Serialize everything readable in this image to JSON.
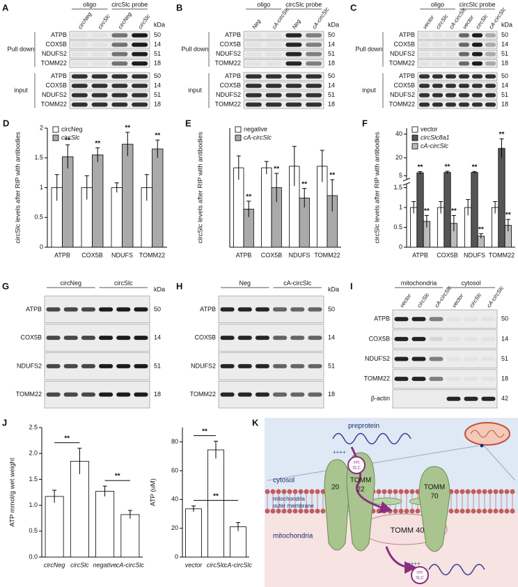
{
  "blots": [
    {
      "letter": "A",
      "kda_label": "kDa",
      "groups": [
        {
          "label": "oligo",
          "lanes": [
            "circNeg",
            "circSlc"
          ]
        },
        {
          "label": "circSlc probe",
          "lanes": [
            "circNeg",
            "circSlc"
          ]
        }
      ],
      "sections": [
        {
          "label": "Pull down",
          "rows": [
            {
              "protein": "ATPB",
              "kda": 50
            },
            {
              "protein": "COX5B",
              "kda": 14
            },
            {
              "protein": "NDUFS2",
              "kda": 51
            },
            {
              "protein": "TOMM22",
              "kda": 18
            }
          ]
        },
        {
          "label": "input",
          "rows": [
            {
              "protein": "ATPB",
              "kda": 50
            },
            {
              "protein": "COX5B",
              "kda": 14
            },
            {
              "protein": "NDUFS2",
              "kda": 51
            },
            {
              "protein": "TOMM22",
              "kda": 18
            }
          ]
        }
      ]
    },
    {
      "letter": "B",
      "kda_label": "kDa",
      "groups": [
        {
          "label": "oligo",
          "lanes": [
            "Neg",
            "cA-circSlc"
          ]
        },
        {
          "label": "circSlc probe",
          "lanes": [
            "Neg",
            "cA-circSlc"
          ]
        }
      ],
      "sections": [
        {
          "label": "Pull down",
          "rows": [
            {
              "protein": "ATPB",
              "kda": 50
            },
            {
              "protein": "COX5B",
              "kda": 14
            },
            {
              "protein": "NDUFS2",
              "kda": 51
            },
            {
              "protein": "TOMM22",
              "kda": 18
            }
          ]
        },
        {
          "label": "input",
          "rows": [
            {
              "protein": "ATPB",
              "kda": 50
            },
            {
              "protein": "COX5B",
              "kda": 14
            },
            {
              "protein": "NDUFS2",
              "kda": 51
            },
            {
              "protein": "TOMM22",
              "kda": 18
            }
          ]
        }
      ]
    },
    {
      "letter": "C",
      "kda_label": "kDa",
      "groups": [
        {
          "label": "oligo",
          "lanes": [
            "vector",
            "circSlc",
            "cA-circSlc"
          ]
        },
        {
          "label": "circSlc probe",
          "lanes": [
            "vector",
            "circSlc",
            "cA-circSlc"
          ]
        }
      ],
      "sections": [
        {
          "label": "Pull down",
          "rows": [
            {
              "protein": "ATPB",
              "kda": 50
            },
            {
              "protein": "COX5B",
              "kda": 14
            },
            {
              "protein": "NDUFS2",
              "kda": 51
            },
            {
              "protein": "TOMM22",
              "kda": 18
            }
          ]
        },
        {
          "label": "input",
          "rows": [
            {
              "protein": "ATPB",
              "kda": 50
            },
            {
              "protein": "COX5B",
              "kda": 14
            },
            {
              "protein": "NDUFS2",
              "kda": 51
            },
            {
              "protein": "TOMM22",
              "kda": 18
            }
          ]
        }
      ]
    },
    {
      "letter": "G",
      "kda_label": "kDa",
      "groups": [
        {
          "label": "circNeg",
          "lanes": [
            null,
            null,
            null
          ]
        },
        {
          "label": "circSlc",
          "lanes": [
            null,
            null,
            null
          ]
        }
      ],
      "sections": [
        {
          "label": null,
          "rows": [
            {
              "protein": "ATPB",
              "kda": 50
            },
            {
              "protein": "COX5B",
              "kda": 14
            },
            {
              "protein": "NDUFS2",
              "kda": 51
            },
            {
              "protein": "TOMM22",
              "kda": 18
            }
          ]
        }
      ]
    },
    {
      "letter": "H",
      "kda_label": "kDa",
      "groups": [
        {
          "label": "Neg",
          "lanes": [
            null,
            null,
            null
          ]
        },
        {
          "label": "cA-circSlc",
          "lanes": [
            null,
            null,
            null
          ]
        }
      ],
      "sections": [
        {
          "label": null,
          "rows": [
            {
              "protein": "ATPB",
              "kda": 50
            },
            {
              "protein": "COX5B",
              "kda": 14
            },
            {
              "protein": "NDUFS2",
              "kda": 51
            },
            {
              "protein": "TOMM22",
              "kda": 18
            }
          ]
        }
      ]
    },
    {
      "letter": "I",
      "groups": [
        {
          "label": "mitochondria",
          "lanes": [
            "vector",
            "circSlc",
            "cA-circSlc"
          ]
        },
        {
          "label": "cytosol",
          "lanes": [
            "vector",
            "circSlc",
            "cA-circSlc"
          ]
        }
      ],
      "sections": [
        {
          "label": null,
          "rows": [
            {
              "protein": "ATPB",
              "kda": 50
            },
            {
              "protein": "COX5B",
              "kda": 14
            },
            {
              "protein": "NDUFS2",
              "kda": 51
            },
            {
              "protein": "TOMM22",
              "kda": 18
            },
            {
              "protein": "β-actin",
              "kda": 42
            }
          ]
        }
      ]
    }
  ],
  "chart_data": [
    {
      "type": "bar",
      "letter": "D",
      "ylabel": "circSlc levels after RIP with antibodies",
      "categories": [
        "ATPB",
        "COX5B",
        "NDUFS",
        "TOMM22"
      ],
      "series": [
        {
          "name": "circNeg",
          "color": "#ffffff",
          "values": [
            1.0,
            1.0,
            1.0,
            1.0
          ],
          "errors": [
            0.22,
            0.2,
            0.08,
            0.22
          ]
        },
        {
          "name": "circSlc",
          "color": "#aaaaaa",
          "values": [
            1.52,
            1.55,
            1.73,
            1.65
          ],
          "errors": [
            0.2,
            0.12,
            0.2,
            0.15
          ],
          "significance": [
            "**",
            "**",
            "**",
            "**"
          ]
        }
      ],
      "ylim": [
        0,
        2
      ],
      "yticks": [
        0,
        0.5,
        1,
        1.5,
        2
      ]
    },
    {
      "type": "bar",
      "letter": "E",
      "ylabel": "circSlc levels after RIP with antibodies",
      "categories": [
        "ATPB",
        "COX5B",
        "NDUFS",
        "TOMM22"
      ],
      "series": [
        {
          "name": "negative",
          "color": "#ffffff",
          "values": [
            1.0,
            1.0,
            1.02,
            1.02
          ],
          "errors": [
            0.15,
            0.08,
            0.25,
            0.2
          ]
        },
        {
          "name": "cA-circSlc",
          "color": "#aaaaaa",
          "values": [
            0.48,
            0.75,
            0.62,
            0.65
          ],
          "errors": [
            0.1,
            0.18,
            0.12,
            0.2
          ],
          "significance": [
            "**",
            "**",
            "**",
            "**"
          ]
        }
      ],
      "ylim": [
        0,
        1.5
      ]
    },
    {
      "type": "bar",
      "letter": "F",
      "ylabel": "circSlc levels after RIP with antibodies",
      "categories": [
        "ATPB",
        "COX5B",
        "NDUFS",
        "TOMM22"
      ],
      "series": [
        {
          "name": "vector",
          "color": "#ffffff",
          "values": [
            1.0,
            1.0,
            1.0,
            1.0
          ],
          "errors": [
            0.15,
            0.15,
            0.2,
            0.15
          ]
        },
        {
          "name": "circSlc8a1",
          "color": "#555555",
          "values": [
            7.5,
            7.8,
            7.8,
            28
          ],
          "errors": [
            1,
            1,
            0.8,
            8
          ],
          "significance": [
            "**",
            "**",
            "**",
            "**"
          ]
        },
        {
          "name": "cA-circSlc",
          "color": "#bbbbbb",
          "values": [
            0.65,
            0.6,
            0.28,
            0.55
          ],
          "errors": [
            0.15,
            0.2,
            0.06,
            0.15
          ],
          "significance": [
            "**",
            "**",
            "**",
            "**"
          ]
        }
      ],
      "ylim": [
        0,
        45
      ],
      "yticks": [
        0,
        0.5,
        1,
        1.5,
        5,
        20,
        40
      ],
      "axis_break": [
        1.5,
        5
      ]
    },
    {
      "type": "bar",
      "letter": "J",
      "ylabel": "ATP mmol/g wet weight",
      "categories": [
        "circNeg",
        "circSlc",
        "negative",
        "cA-circSlc"
      ],
      "values": [
        1.17,
        1.85,
        1.27,
        0.82
      ],
      "errors": [
        0.12,
        0.25,
        0.1,
        0.08
      ],
      "color": "#ffffff",
      "ylim": [
        0,
        2.5
      ],
      "yticks": [
        {
          "value": 0,
          "label": "0.0"
        },
        0.5,
        {
          "value": 1,
          "label": "1.0"
        },
        1.5,
        {
          "value": 2,
          "label": "2.0"
        },
        2.5
      ],
      "comparisons": [
        {
          "between": [
            0,
            1
          ],
          "text": "**"
        },
        {
          "between": [
            2,
            3
          ],
          "text": "**"
        }
      ]
    },
    {
      "type": "bar",
      "ylabel": "ATP (uM)",
      "categories": [
        "vector",
        "circSlc",
        "cA-circSlc"
      ],
      "values": [
        33.5,
        74.5,
        21
      ],
      "errors": [
        2,
        6,
        3
      ],
      "color": "#ffffff",
      "ylim": [
        0,
        90
      ],
      "yticks": [
        0,
        20,
        40,
        60,
        80
      ],
      "comparisons": [
        {
          "between": [
            0,
            1
          ],
          "text": "**"
        },
        {
          "between": [
            0,
            2
          ],
          "text": "**"
        }
      ]
    }
  ],
  "diagram": {
    "letter": "K",
    "preprotein": "preprotein",
    "charge": "++++",
    "circ": [
      "circ",
      "SLC"
    ],
    "cytosol": "cytosol",
    "tomm20": "20",
    "tomm22": [
      "TOMM",
      "22"
    ],
    "tomm70": [
      "TOMM",
      "70"
    ],
    "outer_membrane": [
      "mitochondria",
      "outer membrane"
    ],
    "tomm40": "TOMM 40",
    "mitochondria": "mitochondria"
  }
}
